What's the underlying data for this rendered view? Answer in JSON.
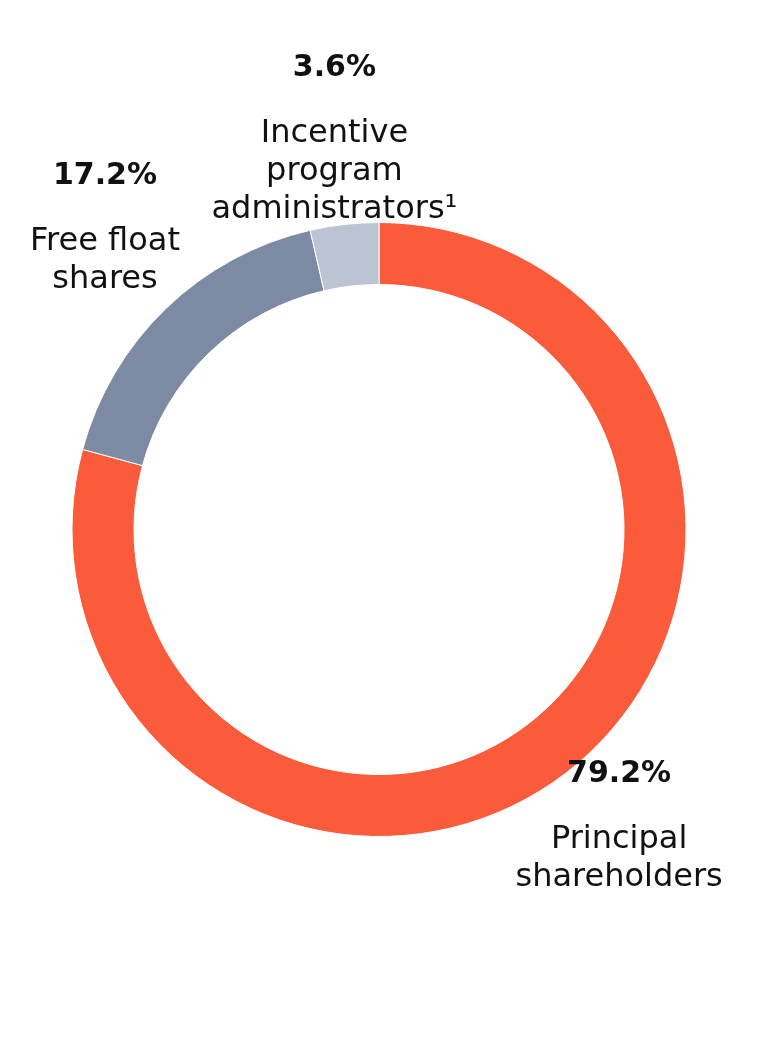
{
  "chart_data": {
    "type": "donut",
    "categories": [
      "Principal shareholders",
      "Free float shares",
      "Incentive program administrators¹"
    ],
    "values": [
      79.2,
      17.2,
      3.6
    ],
    "colors": [
      "#f95b3b",
      "#7d8aa3",
      "#bcc4d3"
    ],
    "value_labels": [
      "79.2%",
      "17.2%",
      "3.6%"
    ],
    "legend": false
  }
}
